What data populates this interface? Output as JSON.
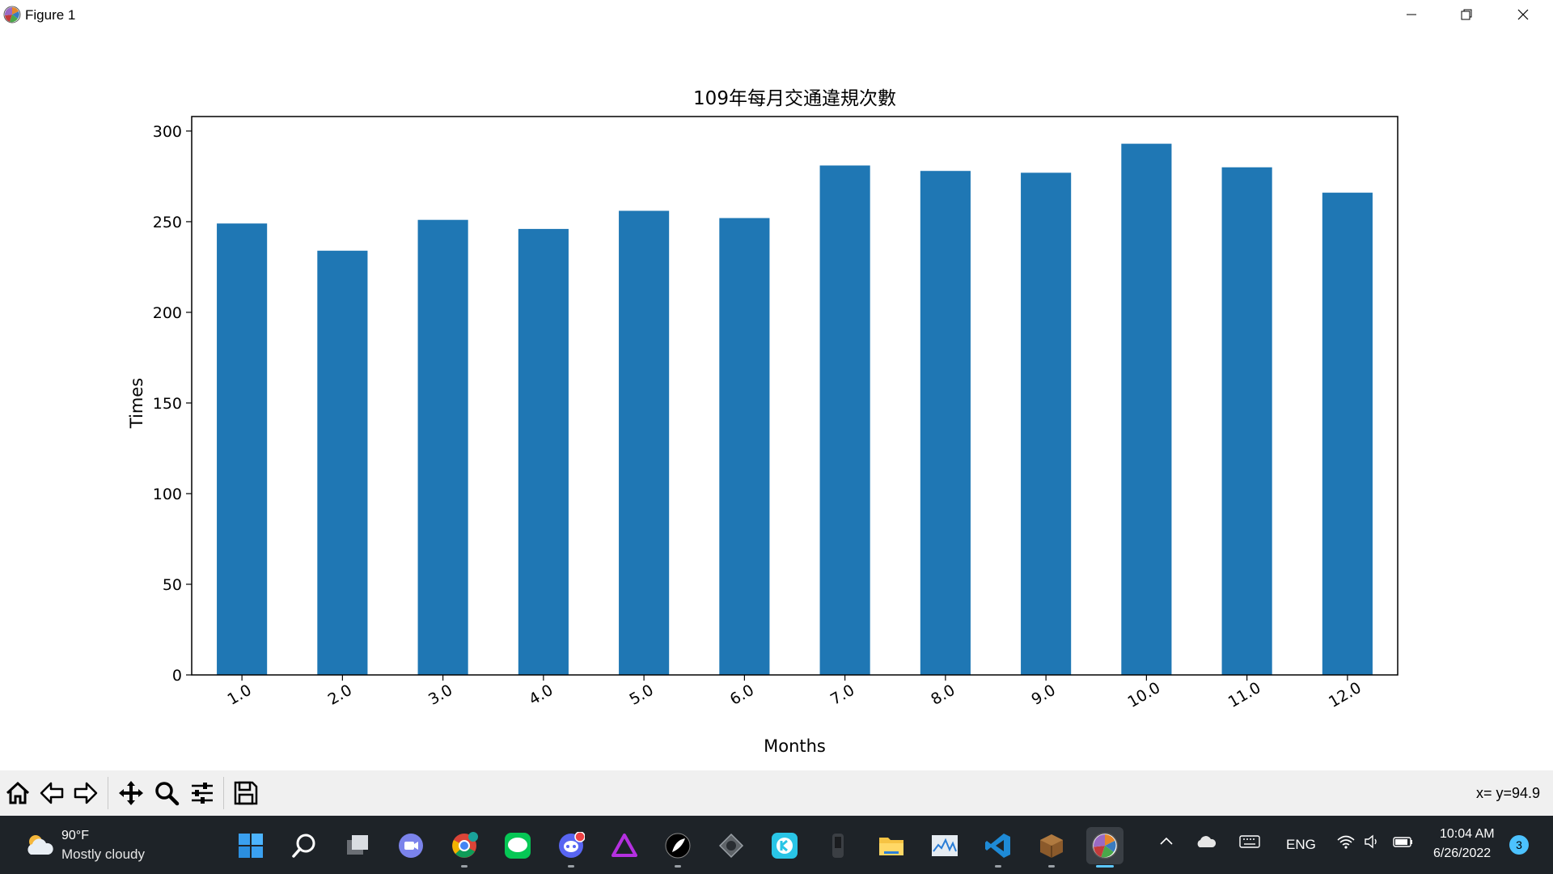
{
  "window": {
    "title": "Figure 1",
    "app_icon": "matplotlib-icon",
    "controls": [
      "minimize-icon",
      "maximize-icon",
      "close-icon"
    ]
  },
  "chart_data": {
    "type": "bar",
    "title": "109年每月交通違規次數",
    "xlabel": "Months",
    "ylabel": "Times",
    "categories": [
      "1.0",
      "2.0",
      "3.0",
      "4.0",
      "5.0",
      "6.0",
      "7.0",
      "8.0",
      "9.0",
      "10.0",
      "11.0",
      "12.0"
    ],
    "values": [
      249,
      234,
      251,
      246,
      256,
      252,
      281,
      278,
      277,
      293,
      280,
      266
    ],
    "ylim": [
      0,
      308
    ],
    "yticks": [
      0,
      50,
      100,
      150,
      200,
      250,
      300
    ],
    "ytick_labels": [
      "0",
      "50",
      "100",
      "150",
      "200",
      "250",
      "300"
    ],
    "bar_color": "#1f77b4",
    "grid": false,
    "xtick_rotation_deg": -30
  },
  "toolbar": {
    "buttons": [
      "home-icon",
      "back-icon",
      "forward-icon",
      "pan-icon",
      "zoom-icon",
      "configure-subplots-icon",
      "save-icon"
    ],
    "coords": "x= y=94.9"
  },
  "taskbar": {
    "weather": {
      "temp": "90°F",
      "desc": "Mostly cloudy",
      "icon": "partly-cloudy-icon"
    },
    "apps": [
      "windows-start-icon",
      "search-icon",
      "task-view-icon",
      "teams-chat-icon",
      "chrome-icon",
      "line-icon",
      "discord-icon",
      "affinity-icon",
      "quill-icon",
      "inkscape-icon",
      "kodular-icon",
      "terminal-icon",
      "file-explorer-icon",
      "task-manager-icon",
      "vscode-icon",
      "minecraft-icon",
      "matplotlib-icon"
    ],
    "tray": {
      "lang": "ENG",
      "time": "10:04 AM",
      "date": "6/26/2022",
      "notifications": "3"
    }
  }
}
